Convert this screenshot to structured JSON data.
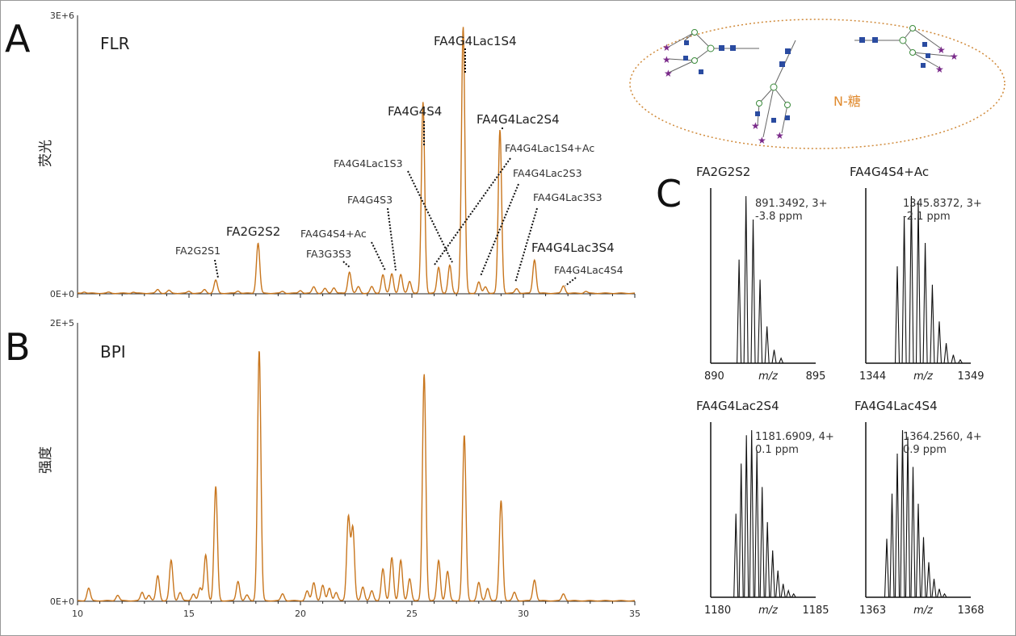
{
  "panels": {
    "A": {
      "letter": "A",
      "title": "FLR",
      "ylabel": "荧光",
      "ymax_label": "3E+6",
      "ymin_label": "0E+0"
    },
    "B": {
      "letter": "B",
      "title": "BPI",
      "ylabel": "强度",
      "ymax_label": "2E+5",
      "ymin_label": "0E+0"
    },
    "C": {
      "letter": "C"
    }
  },
  "glycan_box": {
    "label": "N-糖"
  },
  "colors": {
    "trace": "#C8761E",
    "ms": "#111111",
    "dotted": "#111111",
    "ellipse": "#D08A3A",
    "glycan_text": "#E08A2E"
  },
  "chart_data": [
    {
      "type": "line",
      "name": "FLR",
      "xlim": [
        10,
        35
      ],
      "ylim": [
        0,
        3000000
      ],
      "x_ticks": [
        "10",
        "15",
        "20",
        "25",
        "30",
        "35"
      ],
      "peaks": [
        {
          "x": 10.3,
          "y": 15000
        },
        {
          "x": 11.4,
          "y": 10000
        },
        {
          "x": 12.5,
          "y": 12000
        },
        {
          "x": 13.6,
          "y": 40000
        },
        {
          "x": 14.1,
          "y": 30000
        },
        {
          "x": 15.0,
          "y": 20000
        },
        {
          "x": 15.7,
          "y": 40000
        },
        {
          "x": 16.2,
          "y": 140000
        },
        {
          "x": 17.2,
          "y": 25000
        },
        {
          "x": 18.1,
          "y": 540000
        },
        {
          "x": 19.2,
          "y": 20000
        },
        {
          "x": 20.0,
          "y": 30000
        },
        {
          "x": 20.6,
          "y": 70000
        },
        {
          "x": 21.1,
          "y": 50000
        },
        {
          "x": 21.5,
          "y": 60000
        },
        {
          "x": 22.2,
          "y": 230000
        },
        {
          "x": 22.6,
          "y": 70000
        },
        {
          "x": 23.2,
          "y": 70000
        },
        {
          "x": 23.7,
          "y": 200000
        },
        {
          "x": 24.1,
          "y": 210000
        },
        {
          "x": 24.5,
          "y": 200000
        },
        {
          "x": 24.9,
          "y": 130000
        },
        {
          "x": 25.5,
          "y": 2060000
        },
        {
          "x": 26.2,
          "y": 280000
        },
        {
          "x": 26.7,
          "y": 300000
        },
        {
          "x": 27.3,
          "y": 2870000
        },
        {
          "x": 28.0,
          "y": 120000
        },
        {
          "x": 28.3,
          "y": 70000
        },
        {
          "x": 28.95,
          "y": 1760000
        },
        {
          "x": 29.7,
          "y": 50000
        },
        {
          "x": 30.5,
          "y": 360000
        },
        {
          "x": 31.8,
          "y": 80000
        },
        {
          "x": 32.8,
          "y": 20000
        }
      ],
      "labels": [
        {
          "text": "FA4G4Lac1S4",
          "peak_x": 27.3,
          "style": "large"
        },
        {
          "text": "FA4G4S4",
          "peak_x": 25.5,
          "style": "large"
        },
        {
          "text": "FA4G4Lac2S4",
          "peak_x": 28.95,
          "style": "large"
        },
        {
          "text": "FA4G4Lac1S4+Ac",
          "peak_x": 25.9,
          "style": "small"
        },
        {
          "text": "FA4G4Lac1S3",
          "peak_x": 26.3,
          "style": "small"
        },
        {
          "text": "FA4G4Lac2S3",
          "peak_x": 28.0,
          "style": "small"
        },
        {
          "text": "FA4G4Lac3S3",
          "peak_x": 29.6,
          "style": "small"
        },
        {
          "text": "FA4G4S3",
          "peak_x": 24.2,
          "style": "small"
        },
        {
          "text": "FA2G2S2",
          "peak_x": 18.1,
          "style": "large"
        },
        {
          "text": "FA4G4S4+Ac",
          "peak_x": 23.7,
          "style": "small"
        },
        {
          "text": "FA3G3S3",
          "peak_x": 22.1,
          "style": "small"
        },
        {
          "text": "FA2G2S1",
          "peak_x": 16.2,
          "style": "small"
        },
        {
          "text": "FA4G4Lac3S4",
          "peak_x": 30.5,
          "style": "large"
        },
        {
          "text": "FA4G4Lac4S4",
          "peak_x": 31.8,
          "style": "small"
        }
      ]
    },
    {
      "type": "line",
      "name": "BPI",
      "xlim": [
        10,
        35
      ],
      "ylim": [
        0,
        200000
      ],
      "x_ticks": [
        "10",
        "15",
        "20",
        "25",
        "30",
        "35"
      ],
      "peaks": [
        {
          "x": 10.5,
          "y": 9000
        },
        {
          "x": 11.8,
          "y": 4000
        },
        {
          "x": 12.9,
          "y": 6000
        },
        {
          "x": 13.2,
          "y": 4000
        },
        {
          "x": 13.6,
          "y": 18000
        },
        {
          "x": 14.2,
          "y": 29000
        },
        {
          "x": 14.6,
          "y": 6000
        },
        {
          "x": 15.2,
          "y": 5000
        },
        {
          "x": 15.5,
          "y": 9000
        },
        {
          "x": 15.75,
          "y": 33000
        },
        {
          "x": 16.2,
          "y": 82000
        },
        {
          "x": 17.2,
          "y": 14000
        },
        {
          "x": 17.6,
          "y": 4000
        },
        {
          "x": 18.15,
          "y": 180000
        },
        {
          "x": 19.2,
          "y": 5000
        },
        {
          "x": 20.3,
          "y": 7000
        },
        {
          "x": 20.6,
          "y": 13000
        },
        {
          "x": 21.0,
          "y": 11000
        },
        {
          "x": 21.3,
          "y": 9000
        },
        {
          "x": 21.6,
          "y": 6000
        },
        {
          "x": 22.15,
          "y": 60000
        },
        {
          "x": 22.35,
          "y": 52000
        },
        {
          "x": 22.8,
          "y": 10000
        },
        {
          "x": 23.2,
          "y": 7000
        },
        {
          "x": 23.7,
          "y": 23000
        },
        {
          "x": 24.1,
          "y": 31000
        },
        {
          "x": 24.5,
          "y": 29000
        },
        {
          "x": 24.9,
          "y": 16000
        },
        {
          "x": 25.55,
          "y": 163000
        },
        {
          "x": 26.2,
          "y": 29000
        },
        {
          "x": 26.6,
          "y": 21000
        },
        {
          "x": 27.35,
          "y": 119000
        },
        {
          "x": 28.0,
          "y": 13000
        },
        {
          "x": 28.4,
          "y": 9000
        },
        {
          "x": 29.0,
          "y": 72000
        },
        {
          "x": 29.6,
          "y": 6000
        },
        {
          "x": 30.5,
          "y": 15000
        },
        {
          "x": 31.8,
          "y": 5000
        }
      ]
    },
    {
      "type": "line",
      "name": "FA2G2S2",
      "xlim": [
        890,
        895
      ],
      "x_ticks": [
        "890",
        "895"
      ],
      "x_axis_label": "m/z",
      "annotation": [
        "891.3492, 3+",
        "-3.8 ppm"
      ],
      "sticks": [
        {
          "mz": 891.35,
          "rel": 0.62
        },
        {
          "mz": 891.68,
          "rel": 1.0
        },
        {
          "mz": 892.02,
          "rel": 0.86
        },
        {
          "mz": 892.35,
          "rel": 0.5
        },
        {
          "mz": 892.68,
          "rel": 0.22
        },
        {
          "mz": 893.02,
          "rel": 0.08
        },
        {
          "mz": 893.35,
          "rel": 0.03
        }
      ]
    },
    {
      "type": "line",
      "name": "FA4G4S4+Ac",
      "xlim": [
        1344,
        1349
      ],
      "x_ticks": [
        "1344",
        "1349"
      ],
      "x_axis_label": "m/z",
      "annotation": [
        "1345.8372, 3+",
        "-2.1 ppm"
      ],
      "sticks": [
        {
          "mz": 1345.5,
          "rel": 0.58
        },
        {
          "mz": 1345.83,
          "rel": 0.88
        },
        {
          "mz": 1346.17,
          "rel": 1.0
        },
        {
          "mz": 1346.5,
          "rel": 0.97
        },
        {
          "mz": 1346.83,
          "rel": 0.72
        },
        {
          "mz": 1347.17,
          "rel": 0.47
        },
        {
          "mz": 1347.5,
          "rel": 0.25
        },
        {
          "mz": 1347.83,
          "rel": 0.12
        },
        {
          "mz": 1348.17,
          "rel": 0.05
        },
        {
          "mz": 1348.5,
          "rel": 0.02
        }
      ]
    },
    {
      "type": "line",
      "name": "FA4G4Lac2S4",
      "xlim": [
        1180,
        1185
      ],
      "x_ticks": [
        "1180",
        "1185"
      ],
      "x_axis_label": "m/z",
      "annotation": [
        "1181.6909, 4+",
        "0.1 ppm"
      ],
      "sticks": [
        {
          "mz": 1181.2,
          "rel": 0.5
        },
        {
          "mz": 1181.45,
          "rel": 0.8
        },
        {
          "mz": 1181.7,
          "rel": 0.97
        },
        {
          "mz": 1181.95,
          "rel": 1.0
        },
        {
          "mz": 1182.2,
          "rel": 0.88
        },
        {
          "mz": 1182.45,
          "rel": 0.66
        },
        {
          "mz": 1182.7,
          "rel": 0.45
        },
        {
          "mz": 1182.95,
          "rel": 0.28
        },
        {
          "mz": 1183.2,
          "rel": 0.16
        },
        {
          "mz": 1183.45,
          "rel": 0.08
        },
        {
          "mz": 1183.7,
          "rel": 0.04
        },
        {
          "mz": 1183.95,
          "rel": 0.02
        }
      ]
    },
    {
      "type": "line",
      "name": "FA4G4Lac4S4",
      "xlim": [
        1363,
        1368
      ],
      "x_ticks": [
        "1363",
        "1368"
      ],
      "x_axis_label": "m/z",
      "annotation": [
        "1364.2560, 4+",
        "0.9 ppm"
      ],
      "sticks": [
        {
          "mz": 1364.0,
          "rel": 0.35
        },
        {
          "mz": 1364.25,
          "rel": 0.62
        },
        {
          "mz": 1364.5,
          "rel": 0.86
        },
        {
          "mz": 1364.75,
          "rel": 1.0
        },
        {
          "mz": 1365.0,
          "rel": 0.96
        },
        {
          "mz": 1365.25,
          "rel": 0.78
        },
        {
          "mz": 1365.5,
          "rel": 0.56
        },
        {
          "mz": 1365.75,
          "rel": 0.36
        },
        {
          "mz": 1366.0,
          "rel": 0.21
        },
        {
          "mz": 1366.25,
          "rel": 0.11
        },
        {
          "mz": 1366.5,
          "rel": 0.05
        },
        {
          "mz": 1366.75,
          "rel": 0.02
        }
      ]
    }
  ]
}
